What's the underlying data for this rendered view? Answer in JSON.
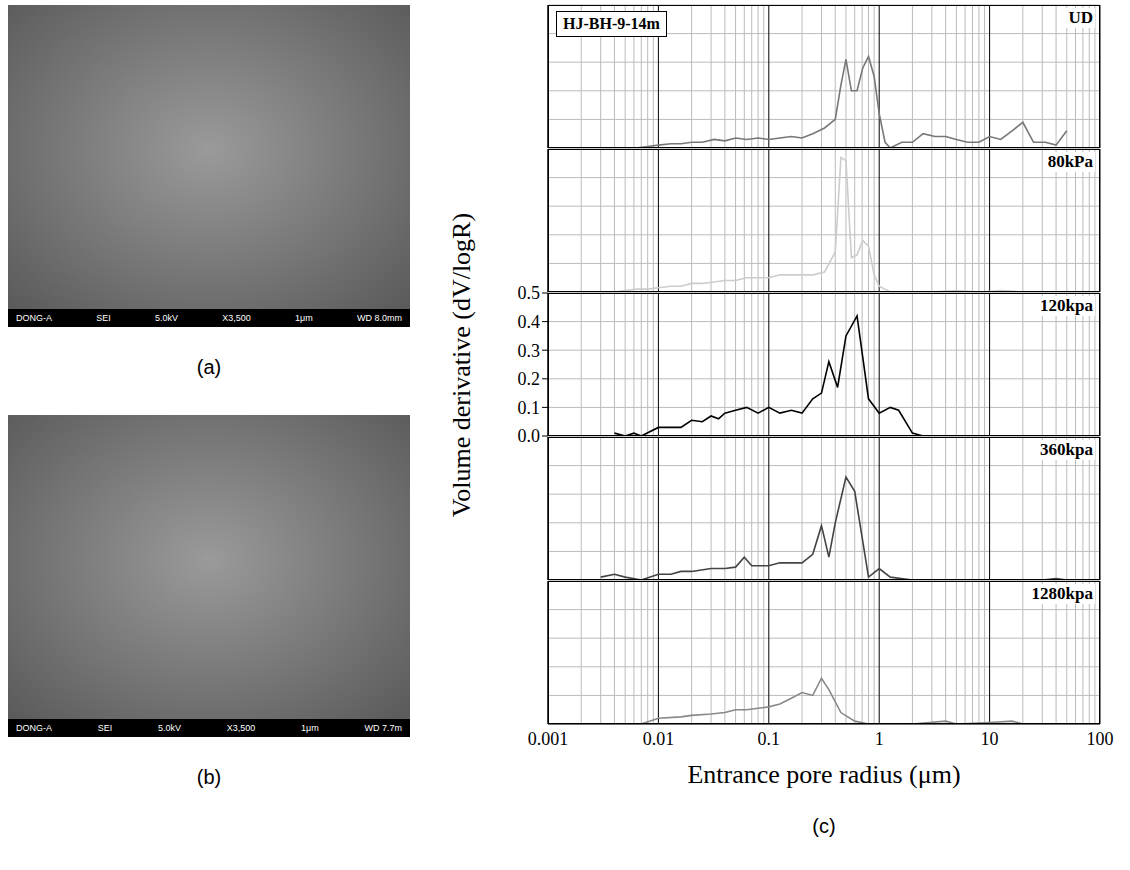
{
  "images": [
    {
      "panel": "(a)",
      "caption": [
        "DONG-A",
        "SEI",
        "5.0kV",
        "X3,500",
        "1μm",
        "WD 8.0mm"
      ]
    },
    {
      "panel": "(b)",
      "caption": [
        "DONG-A",
        "SEI",
        "5.0kV",
        "X3,500",
        "1μm",
        "WD 7.7m"
      ]
    }
  ],
  "figure": {
    "panel": "(c)",
    "sample_label": "HJ-BH-9-14m",
    "x_label": "Entrance pore radius (μm)",
    "y_label": "Volume derivative (dV/logR)"
  },
  "chart_data": [
    {
      "type": "line",
      "title": "UD",
      "color": "#777777",
      "log": "x",
      "grid": true,
      "tick_labels": false,
      "xlim": [
        0.001,
        100
      ],
      "xticks": [
        0.001,
        0.01,
        0.1,
        1,
        10,
        100
      ],
      "ylim": [
        0,
        0.5
      ],
      "yticks": [
        {
          "value": 0,
          "label": "0.0"
        },
        {
          "value": 0.1,
          "label": "0.1"
        },
        {
          "value": 0.2,
          "label": "0.2"
        },
        {
          "value": 0.3,
          "label": "0.3"
        },
        {
          "value": 0.4,
          "label": "0.4"
        },
        {
          "value": 0.5,
          "label": "0.5"
        }
      ],
      "x": [
        0.0063,
        0.008,
        0.01,
        0.013,
        0.016,
        0.02,
        0.025,
        0.032,
        0.04,
        0.05,
        0.063,
        0.08,
        0.1,
        0.126,
        0.16,
        0.2,
        0.25,
        0.32,
        0.4,
        0.45,
        0.5,
        0.56,
        0.63,
        0.71,
        0.8,
        0.9,
        1.0,
        1.13,
        1.26,
        1.6,
        2,
        2.5,
        3.2,
        4,
        5,
        6.3,
        8,
        10,
        12.6,
        16,
        20,
        25,
        32,
        40,
        50
      ],
      "values": [
        0,
        0.005,
        0.01,
        0.015,
        0.015,
        0.02,
        0.02,
        0.03,
        0.025,
        0.035,
        0.03,
        0.035,
        0.03,
        0.035,
        0.04,
        0.035,
        0.05,
        0.07,
        0.1,
        0.22,
        0.31,
        0.2,
        0.2,
        0.28,
        0.32,
        0.25,
        0.12,
        0.02,
        0.0,
        0.02,
        0.02,
        0.05,
        0.04,
        0.04,
        0.03,
        0.02,
        0.02,
        0.04,
        0.03,
        0.06,
        0.09,
        0.02,
        0.02,
        0.01,
        0.06
      ]
    },
    {
      "type": "line",
      "title": "80kPa",
      "color": "#cccccc",
      "log": "x",
      "grid": true,
      "tick_labels": false,
      "xlim": [
        0.001,
        100
      ],
      "xticks": [
        0.001,
        0.01,
        0.1,
        1,
        10,
        100
      ],
      "ylim": [
        0,
        0.5
      ],
      "yticks": [
        {
          "value": 0,
          "label": "0.0"
        },
        {
          "value": 0.1,
          "label": "0.1"
        },
        {
          "value": 0.2,
          "label": "0.2"
        },
        {
          "value": 0.3,
          "label": "0.3"
        },
        {
          "value": 0.4,
          "label": "0.4"
        },
        {
          "value": 0.5,
          "label": "0.5"
        }
      ],
      "x": [
        0.004,
        0.005,
        0.0063,
        0.008,
        0.01,
        0.013,
        0.016,
        0.02,
        0.025,
        0.032,
        0.04,
        0.05,
        0.063,
        0.08,
        0.1,
        0.126,
        0.16,
        0.2,
        0.25,
        0.32,
        0.4,
        0.45,
        0.5,
        0.56,
        0.63,
        0.71,
        0.8,
        0.9,
        1.0,
        1.26,
        1.6,
        2,
        3,
        5,
        8,
        13,
        20,
        30,
        50
      ],
      "values": [
        0,
        0.005,
        0.01,
        0.01,
        0.015,
        0.02,
        0.02,
        0.03,
        0.03,
        0.035,
        0.04,
        0.04,
        0.05,
        0.05,
        0.05,
        0.06,
        0.06,
        0.06,
        0.06,
        0.07,
        0.14,
        0.47,
        0.46,
        0.12,
        0.13,
        0.18,
        0.16,
        0.06,
        0.02,
        0.0,
        0.0,
        0.0,
        0.0,
        0.005,
        0.0,
        0.005,
        0.0,
        0.0,
        0.0
      ]
    },
    {
      "type": "line",
      "title": "120kpa",
      "color": "#000000",
      "log": "x",
      "grid": true,
      "tick_labels": "y",
      "xlim": [
        0.001,
        100
      ],
      "xticks": [
        0.001,
        0.01,
        0.1,
        1,
        10,
        100
      ],
      "ylim": [
        0,
        0.5
      ],
      "yticks": [
        {
          "value": 0,
          "label": "0.0"
        },
        {
          "value": 0.1,
          "label": "0.1"
        },
        {
          "value": 0.2,
          "label": "0.2"
        },
        {
          "value": 0.3,
          "label": "0.3"
        },
        {
          "value": 0.4,
          "label": "0.4"
        },
        {
          "value": 0.5,
          "label": "0.5"
        }
      ],
      "x": [
        0.004,
        0.005,
        0.006,
        0.007,
        0.01,
        0.013,
        0.016,
        0.02,
        0.025,
        0.03,
        0.035,
        0.04,
        0.05,
        0.063,
        0.08,
        0.1,
        0.126,
        0.16,
        0.2,
        0.25,
        0.3,
        0.35,
        0.42,
        0.5,
        0.63,
        0.8,
        1.0,
        1.26,
        1.5,
        2,
        2.5,
        3
      ],
      "values": [
        0.01,
        0.0,
        0.01,
        0.0,
        0.03,
        0.03,
        0.03,
        0.055,
        0.05,
        0.07,
        0.06,
        0.08,
        0.09,
        0.1,
        0.08,
        0.1,
        0.08,
        0.09,
        0.08,
        0.13,
        0.15,
        0.26,
        0.17,
        0.35,
        0.42,
        0.13,
        0.08,
        0.1,
        0.09,
        0.01,
        0.0,
        0.0
      ]
    },
    {
      "type": "line",
      "title": "360kpa",
      "color": "#444444",
      "log": "x",
      "grid": true,
      "tick_labels": false,
      "xlim": [
        0.001,
        100
      ],
      "xticks": [
        0.001,
        0.01,
        0.1,
        1,
        10,
        100
      ],
      "ylim": [
        0,
        0.5
      ],
      "yticks": [
        {
          "value": 0,
          "label": "0.0"
        },
        {
          "value": 0.1,
          "label": "0.1"
        },
        {
          "value": 0.2,
          "label": "0.2"
        },
        {
          "value": 0.3,
          "label": "0.3"
        },
        {
          "value": 0.4,
          "label": "0.4"
        },
        {
          "value": 0.5,
          "label": "0.5"
        }
      ],
      "x": [
        0.003,
        0.004,
        0.005,
        0.007,
        0.01,
        0.013,
        0.016,
        0.02,
        0.03,
        0.04,
        0.05,
        0.06,
        0.07,
        0.08,
        0.1,
        0.126,
        0.16,
        0.2,
        0.25,
        0.3,
        0.35,
        0.4,
        0.5,
        0.6,
        0.8,
        1.0,
        1.26,
        2,
        5,
        10,
        30,
        40,
        50
      ],
      "values": [
        0.01,
        0.02,
        0.01,
        0.0,
        0.02,
        0.02,
        0.03,
        0.03,
        0.04,
        0.04,
        0.045,
        0.08,
        0.05,
        0.05,
        0.05,
        0.06,
        0.06,
        0.06,
        0.09,
        0.19,
        0.08,
        0.2,
        0.36,
        0.31,
        0.01,
        0.04,
        0.01,
        0.0,
        0.0,
        0.0,
        0.0,
        0.005,
        0.0
      ]
    },
    {
      "type": "line",
      "title": "1280kpa",
      "color": "#888888",
      "log": "x",
      "grid": true,
      "tick_labels": "x",
      "xlim": [
        0.001,
        100
      ],
      "xticks": [
        0.001,
        0.01,
        0.1,
        1,
        10,
        100
      ],
      "ylim": [
        0,
        0.5
      ],
      "yticks": [
        {
          "value": 0,
          "label": "0.0"
        },
        {
          "value": 0.1,
          "label": "0.1"
        },
        {
          "value": 0.2,
          "label": "0.2"
        },
        {
          "value": 0.3,
          "label": "0.3"
        },
        {
          "value": 0.4,
          "label": "0.4"
        },
        {
          "value": 0.5,
          "label": "0.5"
        }
      ],
      "x": [
        0.003,
        0.004,
        0.007,
        0.01,
        0.016,
        0.02,
        0.03,
        0.04,
        0.05,
        0.063,
        0.08,
        0.1,
        0.126,
        0.16,
        0.2,
        0.25,
        0.3,
        0.35,
        0.45,
        0.6,
        0.8,
        2,
        4,
        5,
        10,
        16,
        20,
        50
      ],
      "values": [
        0.0,
        0.0,
        0.0,
        0.02,
        0.025,
        0.03,
        0.035,
        0.04,
        0.05,
        0.05,
        0.055,
        0.06,
        0.07,
        0.09,
        0.11,
        0.1,
        0.16,
        0.12,
        0.04,
        0.01,
        0.0,
        0.0,
        0.01,
        0.0,
        0.005,
        0.01,
        0.0,
        0.0
      ]
    }
  ]
}
